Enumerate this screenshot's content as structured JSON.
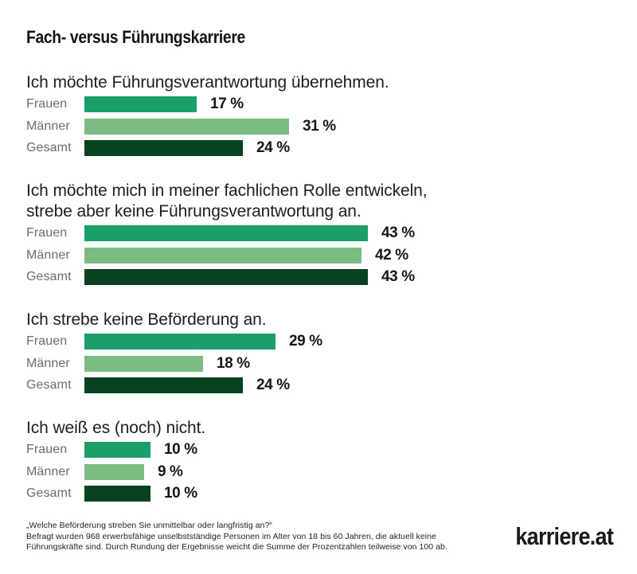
{
  "page": {
    "title": "Fach- versus Führungskarriere",
    "background": "#ffffff"
  },
  "colors": {
    "frauen": "#1C9E69",
    "maenner": "#7ABC81",
    "gesamt": "#06421E",
    "label_gray": "#646E78",
    "text_dark": "#1E1E1C"
  },
  "chart_data": {
    "type": "bar",
    "orientation": "horizontal",
    "title": "Fach- versus Führungskarriere",
    "unit": "%",
    "grid": false,
    "legend_position": "none",
    "xlabel": "",
    "ylabel": "",
    "value_range": [
      0,
      43
    ],
    "series_order": [
      "Frauen",
      "Männer",
      "Gesamt"
    ],
    "series_colors": {
      "Frauen": "#1C9E69",
      "Männer": "#7ABC81",
      "Gesamt": "#06421E"
    },
    "groups": [
      {
        "question": "Ich möchte Führungsverantwortung übernehmen.",
        "values": {
          "Frauen": 17,
          "Männer": 31,
          "Gesamt": 24
        }
      },
      {
        "question": "Ich möchte mich in meiner fachlichen Rolle entwickeln, strebe aber keine Führungsverantwortung an.",
        "values": {
          "Frauen": 43,
          "Männer": 42,
          "Gesamt": 43
        }
      },
      {
        "question": "Ich strebe keine Beförderung an.",
        "values": {
          "Frauen": 29,
          "Männer": 18,
          "Gesamt": 24
        }
      },
      {
        "question": "Ich weiß es (noch) nicht.",
        "values": {
          "Frauen": 10,
          "Männer": 9,
          "Gesamt": 10
        }
      }
    ]
  },
  "footer": {
    "note_lines": [
      "„Welche Beförderung streben Sie unmittelbar oder langfristig an?“",
      "Befragt wurden 968 erwerbsfähige unselbstständige Personen im Alter von 18 bis 60 Jahren, die aktuell keine",
      "Führungskräfte sind. Durch Rundung der Ergebnisse weicht die Summe der Prozentzahlen teilweise von 100 ab."
    ],
    "logo": "karriere.at"
  }
}
